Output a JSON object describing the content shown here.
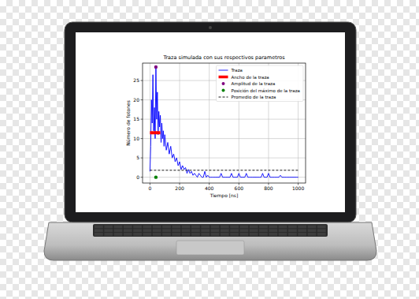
{
  "chart_data": {
    "type": "line",
    "title": "Traza simulada con sus respectivos parametros",
    "x_label": "Tiempo [ns]",
    "y_label": "Número de fotones",
    "xlim": [
      -50,
      1050
    ],
    "ylim": [
      -1.5,
      29.5
    ],
    "xticks": [
      0,
      200,
      400,
      600,
      800,
      1000
    ],
    "yticks": [
      0,
      5,
      10,
      15,
      20,
      25
    ],
    "grid": true,
    "legend": "upper right",
    "series": [
      {
        "name": "Traza",
        "type": "line",
        "color": "#0000ff",
        "line_style": "solid",
        "x": [
          0,
          5,
          10,
          15,
          20,
          25,
          30,
          35,
          40,
          45,
          50,
          55,
          60,
          65,
          70,
          75,
          80,
          85,
          90,
          95,
          100,
          110,
          120,
          130,
          140,
          150,
          160,
          170,
          180,
          190,
          200,
          210,
          220,
          230,
          240,
          250,
          260,
          270,
          280,
          290,
          300,
          310,
          320,
          330,
          340,
          350,
          360,
          370,
          380,
          390,
          400,
          410,
          420,
          430,
          440,
          450,
          460,
          470,
          480,
          490,
          500,
          510,
          520,
          530,
          540,
          550,
          560,
          570,
          580,
          590,
          600,
          610,
          620,
          630,
          640,
          650,
          660,
          670,
          680,
          690,
          700,
          710,
          720,
          730,
          740,
          750,
          760,
          770,
          780,
          790,
          800,
          810,
          820,
          830,
          840,
          850,
          860,
          870,
          880,
          890,
          900,
          910,
          920,
          930,
          940,
          950,
          960,
          970,
          980,
          990,
          1000
        ],
        "values": [
          1.5,
          8,
          20,
          14,
          26.5,
          12,
          18,
          10,
          28.5,
          15,
          22,
          11,
          17,
          13,
          16,
          9,
          14,
          10,
          12,
          8,
          11,
          7,
          9,
          6,
          8,
          5,
          6,
          4,
          5,
          3,
          4,
          2,
          3,
          2,
          2.5,
          1,
          2,
          1,
          1.5,
          0.5,
          1,
          0.5,
          0,
          1,
          0.5,
          0,
          0,
          1.5,
          0,
          0.5,
          0,
          0,
          0,
          0,
          0,
          0,
          0,
          0,
          1,
          0,
          0,
          0,
          0,
          0,
          0,
          1,
          0,
          0,
          0,
          0,
          1,
          0,
          0,
          0,
          0,
          1,
          0,
          0,
          0,
          0,
          0,
          0,
          0,
          0,
          0,
          0,
          1,
          0,
          0,
          0,
          1,
          0,
          0,
          0,
          0,
          0,
          0,
          0,
          0.5,
          0,
          0,
          0,
          0,
          0,
          0,
          0,
          0,
          0,
          0,
          0,
          0
        ]
      },
      {
        "name": "Ancho de la traza",
        "type": "line",
        "color": "#ff0000",
        "line_style": "solid",
        "x": [
          0,
          70
        ],
        "values": [
          11.5,
          11.5
        ]
      },
      {
        "name": "Amplitud de la traza",
        "type": "scatter",
        "color": "#800080",
        "marker": "circle",
        "x": [
          40
        ],
        "values": [
          28.5
        ]
      },
      {
        "name": "Posición del máximo de la traza",
        "type": "scatter",
        "color": "#008000",
        "marker": "circle",
        "x": [
          40
        ],
        "values": [
          0
        ]
      },
      {
        "name": "Promedio de la traza",
        "type": "line",
        "color": "#000000",
        "line_style": "dashed",
        "x": [
          0,
          1000
        ],
        "values": [
          1.8,
          1.8
        ]
      }
    ]
  }
}
